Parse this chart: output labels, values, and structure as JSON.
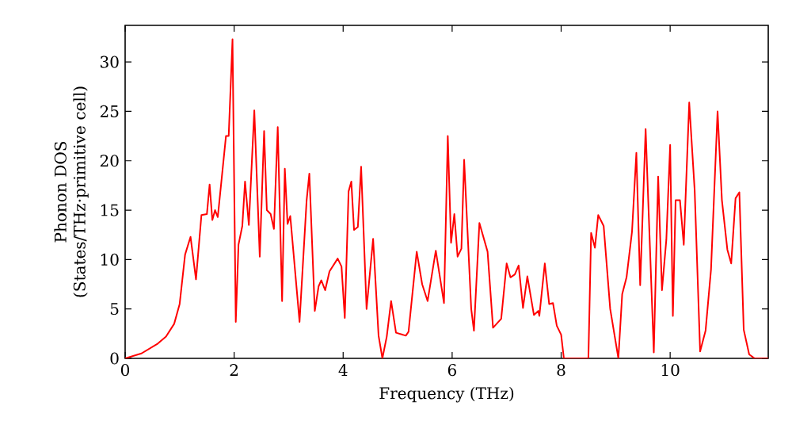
{
  "chart_data": {
    "type": "line",
    "xlabel": "Frequency (THz)",
    "ylabel": "Phonon DOS (States/THz·primitive cell)",
    "xlim": [
      0,
      11.8
    ],
    "ylim": [
      0,
      33.7
    ],
    "xticks": [
      0,
      2,
      4,
      6,
      8,
      10
    ],
    "yticks": [
      0,
      5,
      10,
      15,
      20,
      25,
      30
    ],
    "grid": false,
    "marker": "none",
    "line_style": "solid",
    "series": [
      {
        "color": "#ff0000",
        "x": [
          0,
          0.3,
          0.6,
          0.75,
          0.9,
          1.0,
          1.1,
          1.2,
          1.3,
          1.4,
          1.5,
          1.55,
          1.6,
          1.65,
          1.7,
          1.85,
          1.9,
          1.97,
          2.03,
          2.08,
          2.15,
          2.2,
          2.27,
          2.37,
          2.47,
          2.55,
          2.6,
          2.67,
          2.73,
          2.8,
          2.88,
          2.93,
          2.98,
          3.03,
          3.2,
          3.33,
          3.38,
          3.48,
          3.55,
          3.6,
          3.67,
          3.75,
          3.9,
          3.97,
          4.03,
          4.1,
          4.15,
          4.2,
          4.27,
          4.33,
          4.43,
          4.55,
          4.65,
          4.72,
          4.8,
          4.88,
          4.97,
          5.15,
          5.2,
          5.35,
          5.45,
          5.55,
          5.7,
          5.85,
          5.92,
          5.98,
          6.04,
          6.1,
          6.17,
          6.22,
          6.35,
          6.4,
          6.5,
          6.65,
          6.75,
          6.9,
          7.0,
          7.07,
          7.15,
          7.22,
          7.3,
          7.38,
          7.5,
          7.58,
          7.6,
          7.7,
          7.78,
          7.85,
          7.92,
          8.0,
          8.05,
          8.5,
          8.55,
          8.62,
          8.68,
          8.78,
          8.9,
          9.05,
          9.12,
          9.2,
          9.3,
          9.38,
          9.45,
          9.55,
          9.7,
          9.78,
          9.85,
          9.93,
          10.0,
          10.05,
          10.1,
          10.18,
          10.25,
          10.35,
          10.45,
          10.55,
          10.65,
          10.75,
          10.87,
          10.95,
          11.05,
          11.12,
          11.2,
          11.27,
          11.35,
          11.45,
          11.55,
          11.8
        ],
        "values": [
          0,
          0.5,
          1.5,
          2.2,
          3.5,
          5.5,
          10.5,
          12.3,
          8,
          14.5,
          14.6,
          17.6,
          14,
          15,
          14.3,
          22.5,
          22.5,
          32.3,
          3.7,
          11.5,
          13.4,
          17.9,
          13.5,
          25.1,
          10.3,
          23,
          15,
          14.6,
          13.1,
          23.4,
          5.8,
          19.2,
          13.6,
          14.4,
          3.7,
          16,
          18.7,
          4.8,
          7.3,
          7.9,
          6.9,
          8.8,
          10.1,
          9.3,
          4.1,
          16.9,
          17.9,
          13,
          13.3,
          19.4,
          5,
          12.1,
          2.3,
          0,
          2.2,
          5.8,
          2.6,
          2.3,
          2.7,
          10.8,
          7.5,
          5.8,
          10.9,
          5.6,
          22.5,
          11.7,
          14.6,
          10.3,
          11.1,
          20.1,
          5,
          2.8,
          13.7,
          10.8,
          3.1,
          4,
          9.6,
          8.2,
          8.5,
          9.4,
          5.1,
          8.3,
          4.4,
          4.8,
          4.3,
          9.6,
          5.5,
          5.6,
          3.3,
          2.4,
          0,
          0,
          12.7,
          11.2,
          14.5,
          13.4,
          5,
          0,
          6.5,
          8.2,
          12.8,
          20.8,
          7.4,
          23.2,
          0.6,
          18.4,
          6.9,
          12,
          21.6,
          4.3,
          16,
          16,
          11.5,
          25.9,
          17,
          0.7,
          2.8,
          9,
          25,
          16,
          11,
          9.6,
          16.2,
          16.8,
          2.9,
          0.4,
          0,
          0
        ]
      }
    ]
  }
}
